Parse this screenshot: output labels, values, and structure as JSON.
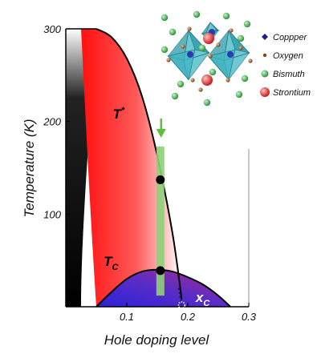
{
  "chart_data": {
    "type": "area",
    "title": "",
    "xlabel": "Hole doping level",
    "ylabel": "Temperature (K)",
    "xlim": [
      0.0,
      0.3
    ],
    "ylim": [
      0,
      300
    ],
    "x_ticks": [
      "0.1",
      "0.2",
      "0.3"
    ],
    "y_ticks": [
      "100",
      "200",
      "300"
    ],
    "pseudogap_line": {
      "label_main": "T",
      "label_sup": "*",
      "x": [
        0.05,
        0.075,
        0.1,
        0.125,
        0.15,
        0.175,
        0.19
      ],
      "y": [
        300,
        291,
        268,
        227,
        163,
        79,
        8
      ]
    },
    "superconducting_dome": {
      "label_main": "T",
      "label_sub": "C",
      "x": [
        0.05,
        0.075,
        0.1,
        0.125,
        0.15,
        0.175,
        0.2,
        0.225,
        0.25,
        0.27
      ],
      "y": [
        0,
        16,
        30,
        38,
        40,
        38,
        32,
        24,
        12,
        0
      ]
    },
    "highlight_doping": 0.155,
    "marked_points": [
      {
        "x": 0.155,
        "y": 137
      },
      {
        "x": 0.155,
        "y": 39
      }
    ],
    "critical_point": {
      "x": 0.19,
      "y": 0,
      "label_main": "x",
      "label_sub": "C"
    },
    "colors": {
      "pseudogap_fill": "#ff1a1a",
      "dome_fill": "#3a2bd6",
      "band": "#8fd07a",
      "arrow": "#5cc03a",
      "point": "#000000"
    },
    "legend": {
      "items": [
        {
          "label": "Coppper",
          "color": "#1f1f8a",
          "icon": "blue-diamond-icon"
        },
        {
          "label": "Oxygen",
          "color": "#8b4513",
          "icon": "small-brown-dot-icon"
        },
        {
          "label": "Bismuth",
          "color": "#2e9e3c",
          "icon": "green-sphere-icon"
        },
        {
          "label": "Strontium",
          "color": "#e12020",
          "icon": "red-sphere-icon"
        }
      ]
    }
  }
}
